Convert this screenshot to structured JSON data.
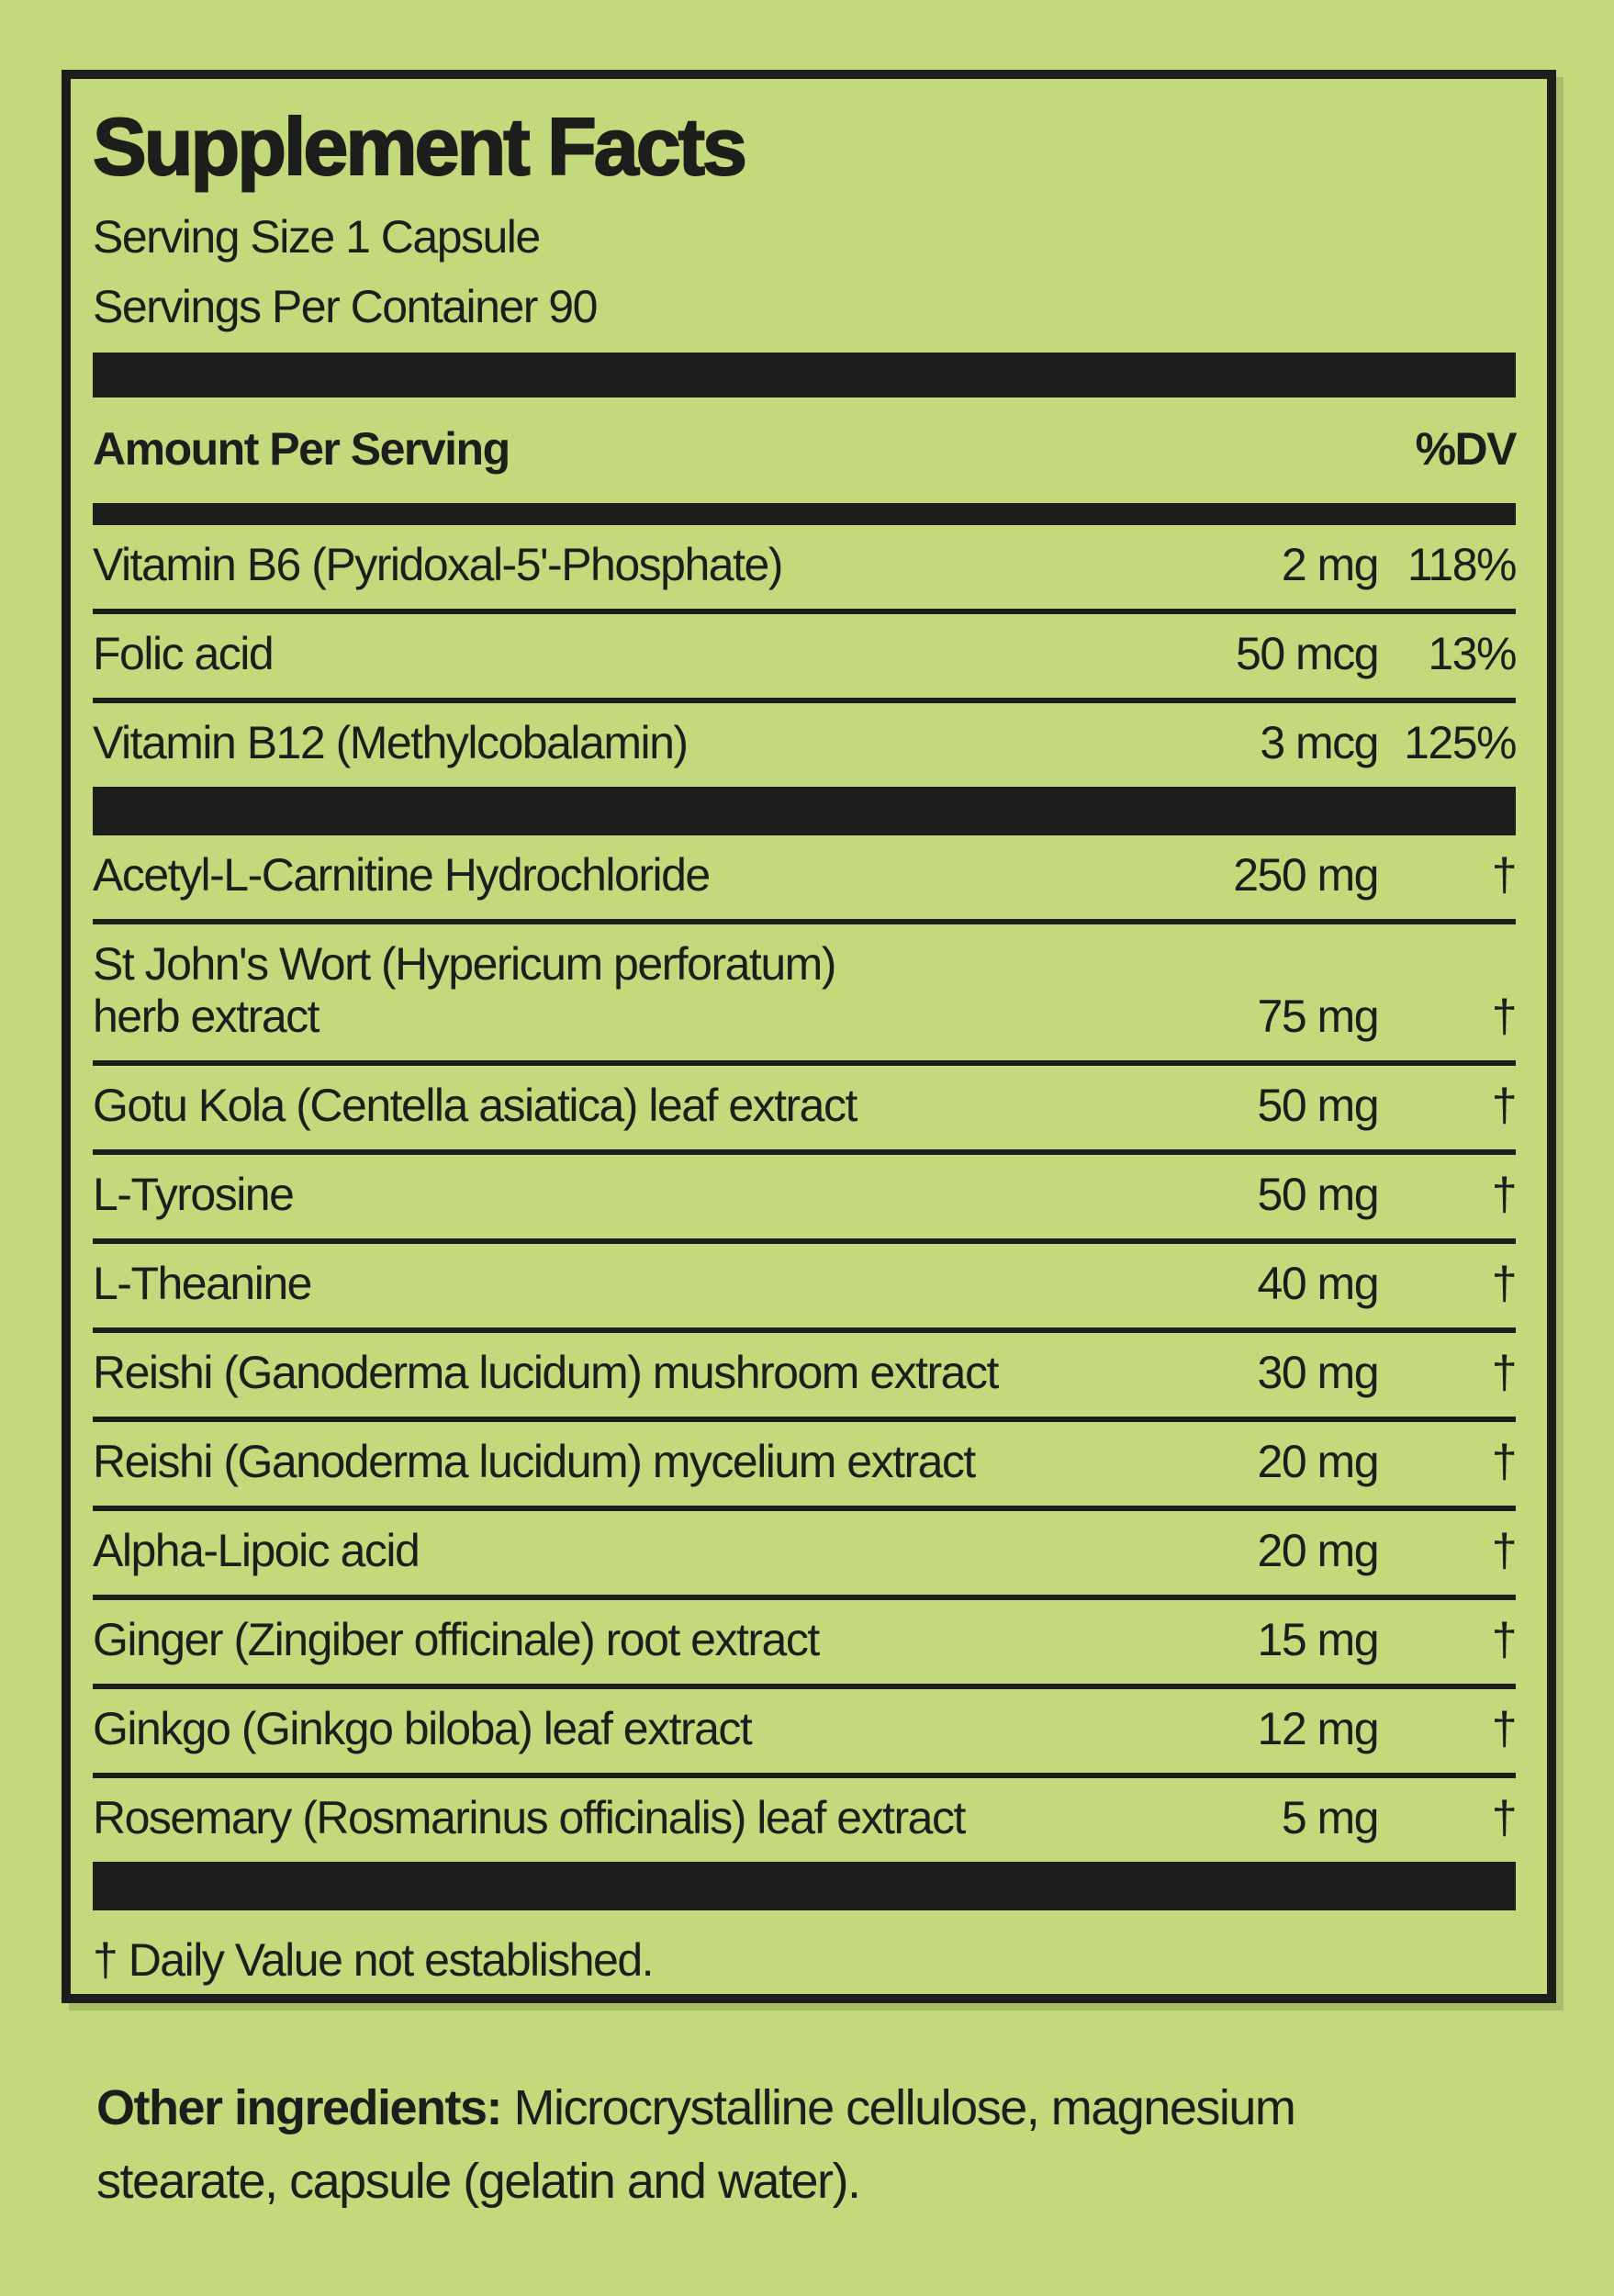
{
  "colors": {
    "background": "#c4d97c",
    "ink": "#1d1d1b",
    "shadow": "#a9bd68"
  },
  "panel": {
    "title": "Supplement Facts",
    "serving_size": "Serving Size 1 Capsule",
    "servings_per_container": "Servings Per Container 90",
    "header": {
      "amount_label": "Amount Per Serving",
      "dv_label": "%DV"
    },
    "rows": [
      {
        "name": "Vitamin B6 (Pyridoxal-5'-Phosphate)",
        "amount": "2 mg",
        "dv": "118%"
      },
      {
        "name": "Folic acid",
        "amount": "50 mcg",
        "dv": "13%"
      },
      {
        "name": "Vitamin B12 (Methylcobalamin)",
        "amount": "3 mcg",
        "dv": "125%"
      },
      {
        "name": "Acetyl-L-Carnitine Hydrochloride",
        "amount": "250 mg",
        "dv": "†"
      },
      {
        "name": "St John's Wort (Hypericum perforatum)\nherb extract",
        "amount": "75 mg",
        "dv": "†"
      },
      {
        "name": "Gotu Kola (Centella asiatica) leaf extract",
        "amount": "50 mg",
        "dv": "†"
      },
      {
        "name": "L-Tyrosine",
        "amount": "50 mg",
        "dv": "†"
      },
      {
        "name": "L-Theanine",
        "amount": "40 mg",
        "dv": "†"
      },
      {
        "name": "Reishi (Ganoderma lucidum) mushroom extract",
        "amount": "30 mg",
        "dv": "†"
      },
      {
        "name": "Reishi (Ganoderma lucidum) mycelium extract",
        "amount": "20 mg",
        "dv": "†"
      },
      {
        "name": "Alpha-Lipoic acid",
        "amount": "20 mg",
        "dv": "†"
      },
      {
        "name": "Ginger (Zingiber officinale) root extract",
        "amount": "15 mg",
        "dv": "†"
      },
      {
        "name": "Ginkgo (Ginkgo biloba) leaf extract",
        "amount": "12 mg",
        "dv": "†"
      },
      {
        "name": "Rosemary (Rosmarinus officinalis) leaf extract",
        "amount": "5 mg",
        "dv": "†"
      }
    ],
    "footnote": "† Daily Value not established.",
    "other_ingredients_label": "Other ingredients:",
    "other_ingredients_text": " Microcrystalline cellulose, magnesium stearate, capsule (gelatin and water)."
  }
}
